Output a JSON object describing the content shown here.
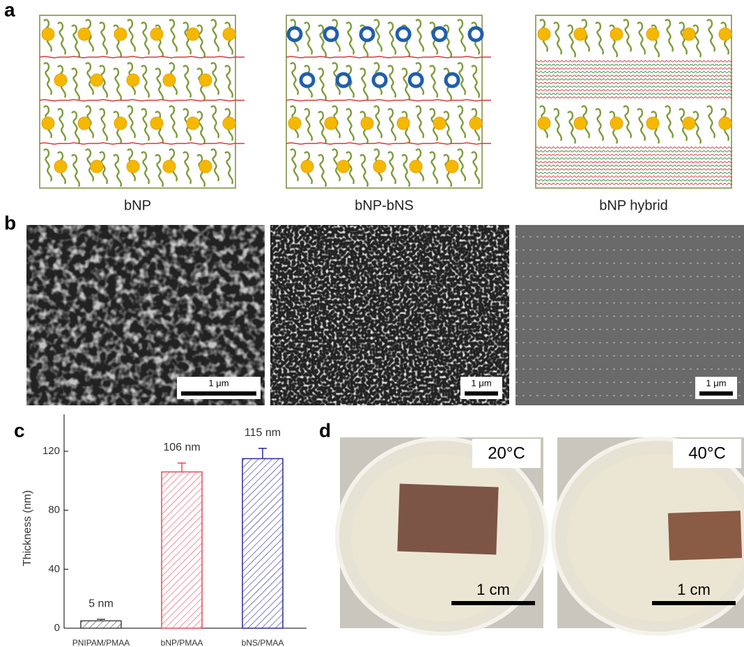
{
  "panels": {
    "a": {
      "label": "a",
      "captions": [
        "bNP",
        "bNP-bNS",
        "bNP hybrid"
      ]
    },
    "b": {
      "label": "b",
      "scale_bars": [
        "1 μm",
        "1 μm",
        "1 μm"
      ]
    },
    "d": {
      "label": "d",
      "temperatures": [
        "20°C",
        "40°C"
      ],
      "scale_bars": [
        "1 cm",
        "1 cm"
      ]
    }
  },
  "chart_data": {
    "type": "bar",
    "panel_label": "c",
    "y_label": "Thickness (nm)",
    "categories": [
      "PNIPAM/PMAA",
      "bNP/PMAA",
      "bNS/PMAA"
    ],
    "values": [
      5,
      106,
      115
    ],
    "errors": [
      1,
      6,
      7
    ],
    "value_labels": [
      "5 nm",
      "106 nm",
      "115 nm"
    ],
    "colors": [
      "#444444",
      "#e8485a",
      "#2a2a9a"
    ],
    "ylim": [
      0,
      145
    ],
    "yticks": [
      0,
      40,
      80,
      120
    ]
  }
}
